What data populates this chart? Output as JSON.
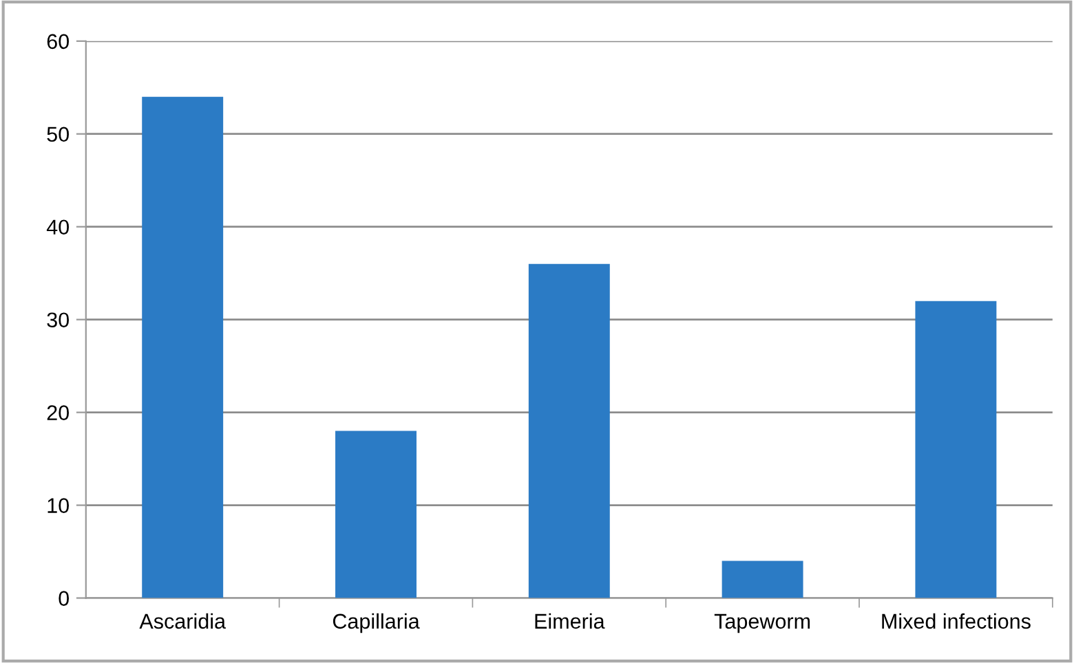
{
  "chart_data": {
    "type": "bar",
    "categories": [
      "Ascaridia",
      "Capillaria",
      "Eimeria",
      "Tapeworm",
      "Mixed infections"
    ],
    "values": [
      54,
      18,
      36,
      4,
      32
    ],
    "color": "#2b7bc5",
    "ylim": [
      0,
      60
    ],
    "yticks": [
      0,
      10,
      20,
      30,
      40,
      50,
      60
    ],
    "grid": "y"
  }
}
